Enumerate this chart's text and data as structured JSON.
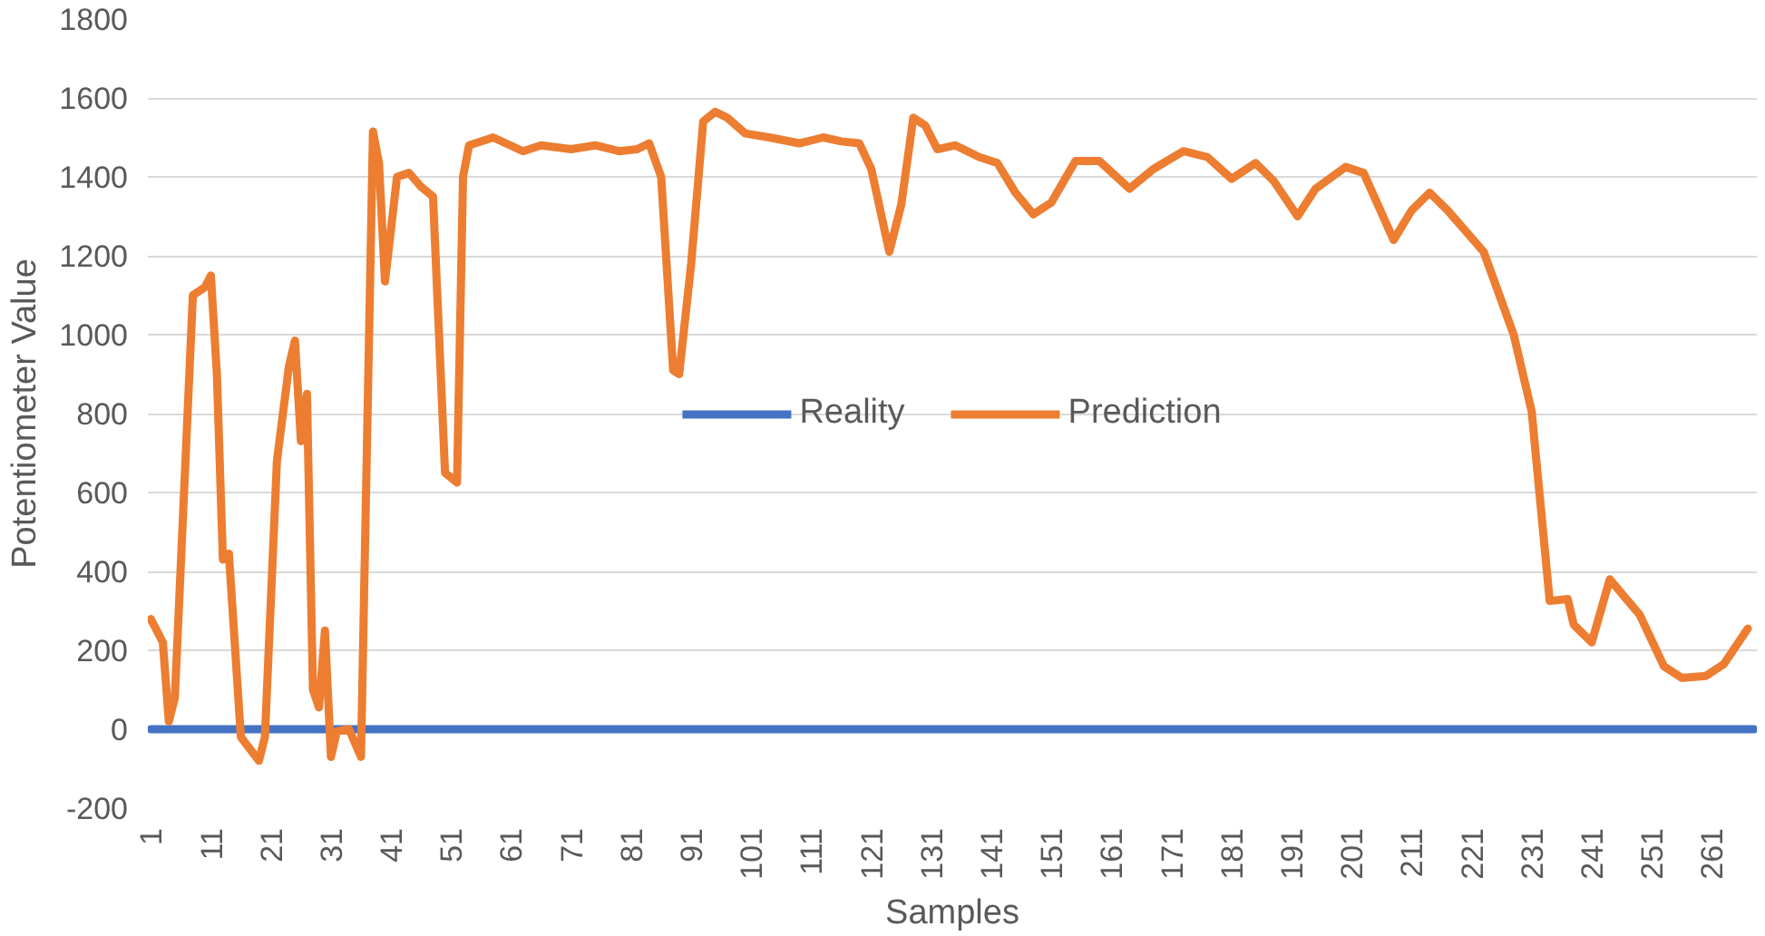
{
  "chart_data": {
    "type": "line",
    "xlabel": "Samples",
    "ylabel": "Potentiometer Value",
    "xlim": [
      0.5,
      268.5
    ],
    "xticks": [
      1,
      11,
      21,
      31,
      41,
      51,
      61,
      71,
      81,
      91,
      101,
      111,
      121,
      131,
      141,
      151,
      161,
      171,
      181,
      191,
      201,
      211,
      221,
      231,
      241,
      251,
      261
    ],
    "ylim": [
      -200,
      1800
    ],
    "yticks": [
      -200,
      0,
      200,
      400,
      600,
      800,
      1000,
      1200,
      1400,
      1600,
      1800
    ],
    "grid": "y",
    "legend": "center",
    "line_style": "solid",
    "marker": "none",
    "series": [
      {
        "name": "Reality",
        "color": "#4472c4",
        "x": [
          1,
          268
        ],
        "values": [
          0,
          0
        ]
      },
      {
        "name": "Prediction",
        "color": "#ed7d31",
        "x": [
          1,
          3,
          4,
          5,
          8,
          10,
          11,
          12,
          13,
          14,
          16,
          19,
          20,
          22,
          24,
          25,
          26,
          27,
          28,
          29,
          30,
          31,
          32,
          34,
          36,
          38,
          39,
          40,
          42,
          44,
          46,
          48,
          50,
          52,
          53,
          54,
          57,
          58,
          63,
          66,
          71,
          75,
          79,
          82,
          84,
          86,
          88,
          89,
          91,
          93,
          95,
          97,
          100,
          104,
          109,
          113,
          116,
          119,
          121,
          124,
          126,
          128,
          130,
          132,
          135,
          139,
          142,
          145,
          148,
          151,
          155,
          159,
          164,
          168,
          173,
          177,
          181,
          185,
          188,
          192,
          195,
          200,
          203,
          208,
          211,
          214,
          217,
          223,
          228,
          231,
          234,
          237,
          238,
          241,
          244,
          249,
          253,
          256,
          260,
          263,
          267
        ],
        "values": [
          279,
          220,
          20,
          80,
          1100,
          1120,
          1150,
          900,
          430,
          445,
          -20,
          -80,
          -20,
          680,
          920,
          985,
          730,
          850,
          100,
          55,
          250,
          -70,
          -5,
          0,
          -70,
          1515,
          1435,
          1135,
          1400,
          1410,
          1375,
          1350,
          650,
          625,
          1400,
          1480,
          1495,
          1500,
          1465,
          1480,
          1470,
          1480,
          1465,
          1470,
          1485,
          1400,
          910,
          900,
          1180,
          1540,
          1565,
          1550,
          1510,
          1500,
          1485,
          1500,
          1490,
          1485,
          1420,
          1210,
          1330,
          1550,
          1530,
          1470,
          1480,
          1450,
          1435,
          1360,
          1305,
          1335,
          1440,
          1440,
          1370,
          1420,
          1465,
          1450,
          1395,
          1435,
          1390,
          1300,
          1370,
          1425,
          1410,
          1240,
          1315,
          1360,
          1315,
          1210,
          1000,
          805,
          325,
          330,
          265,
          220,
          380,
          290,
          160,
          130,
          135,
          165,
          255
        ]
      }
    ]
  }
}
